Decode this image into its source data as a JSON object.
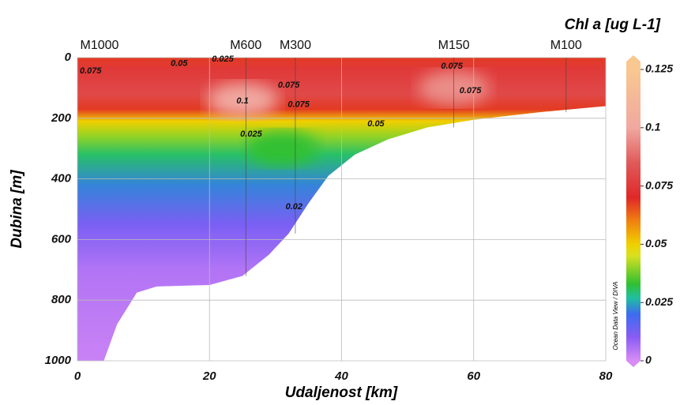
{
  "chart_data": {
    "type": "section",
    "title": "Chl a [ug L-1]",
    "x_label": "Udaljenost [km]",
    "y_label": "Dubina [m]",
    "credit": "Ocean Data View / DIVA",
    "xlim": [
      0,
      80
    ],
    "xticks": [
      0,
      20,
      40,
      60,
      80
    ],
    "ylim": [
      0,
      1000
    ],
    "yticks": [
      0,
      200,
      400,
      600,
      800,
      1000
    ],
    "y_inverted": true,
    "grid": true,
    "stations": {
      "names": [
        "M1000",
        "M600",
        "M300",
        "M150",
        "M100"
      ],
      "x": [
        0,
        25.5,
        33,
        57,
        74
      ]
    },
    "colorbar": {
      "lim": [
        0,
        0.125
      ],
      "ticks": [
        0,
        0.025,
        0.05,
        0.075,
        0.1,
        0.125
      ],
      "colors": [
        {
          "value": 0,
          "color": "#d98cf5"
        },
        {
          "value": 0.01,
          "color": "#8a5cf5"
        },
        {
          "value": 0.02,
          "color": "#3c6cf0"
        },
        {
          "value": 0.027,
          "color": "#20c0a0"
        },
        {
          "value": 0.033,
          "color": "#30c030"
        },
        {
          "value": 0.045,
          "color": "#d8e020"
        },
        {
          "value": 0.05,
          "color": "#f0d000"
        },
        {
          "value": 0.06,
          "color": "#f08010"
        },
        {
          "value": 0.07,
          "color": "#e02828"
        },
        {
          "value": 0.085,
          "color": "#e05a5a"
        },
        {
          "value": 0.1,
          "color": "#f0a8a0"
        },
        {
          "value": 0.125,
          "color": "#f8c890"
        }
      ]
    },
    "profile": {
      "depth": [
        0,
        40,
        120,
        170,
        210,
        260,
        320,
        420,
        550,
        700,
        1000
      ],
      "values": [
        0.068,
        0.075,
        0.08,
        0.068,
        0.05,
        0.04,
        0.03,
        0.022,
        0.012,
        0.005,
        0.002
      ]
    },
    "highlights": [
      {
        "x": 25,
        "depth": 140,
        "value": 0.1
      },
      {
        "x": 57,
        "depth": 100,
        "value": 0.095
      },
      {
        "x": 31,
        "depth": 300,
        "value": 0.033
      }
    ],
    "bottom": {
      "x": [
        4,
        6,
        9,
        12,
        20,
        25,
        29,
        32,
        35,
        38,
        42,
        47,
        53,
        60,
        70,
        80
      ],
      "depth": [
        1000,
        880,
        775,
        755,
        750,
        720,
        650,
        580,
        480,
        390,
        320,
        270,
        230,
        205,
        180,
        160
      ]
    },
    "contour_labels": [
      {
        "text": "0.075",
        "x": 2,
        "depth": 45
      },
      {
        "text": "0.05",
        "x": 15.4,
        "depth": 20
      },
      {
        "text": "0.025",
        "x": 22,
        "depth": 5
      },
      {
        "text": "0.1",
        "x": 25,
        "depth": 143
      },
      {
        "text": "0.075",
        "x": 32,
        "depth": 91
      },
      {
        "text": "0.075",
        "x": 33.5,
        "depth": 155
      },
      {
        "text": "0.075",
        "x": 56.7,
        "depth": 29
      },
      {
        "text": "0.075",
        "x": 59.5,
        "depth": 110
      },
      {
        "text": "0.05",
        "x": 45.2,
        "depth": 219
      },
      {
        "text": "0.025",
        "x": 26.3,
        "depth": 253
      },
      {
        "text": "0.02",
        "x": 32.8,
        "depth": 492
      }
    ]
  }
}
